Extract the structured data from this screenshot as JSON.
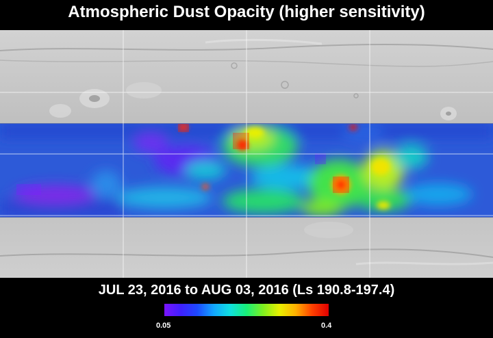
{
  "title": "Atmospheric Dust Opacity (higher sensitivity)",
  "date_range": "JUL 23, 2016 to AUG 03, 2016 (Ls 190.8-197.4)",
  "colorbar": {
    "min_label": "0.05",
    "max_label": "0.4",
    "min": 0.05,
    "max": 0.4,
    "colors": [
      "#7a14ff",
      "#3f20ff",
      "#1d49ff",
      "#12a6ff",
      "#10e0e0",
      "#18f07a",
      "#7df020",
      "#e8f000",
      "#ffb000",
      "#ff4000",
      "#e00000"
    ]
  },
  "colors": {
    "background": "#000000",
    "terrain": "#bdbdbd",
    "grid": "#ffffff",
    "base_opacity": "#2d5ad8"
  }
}
